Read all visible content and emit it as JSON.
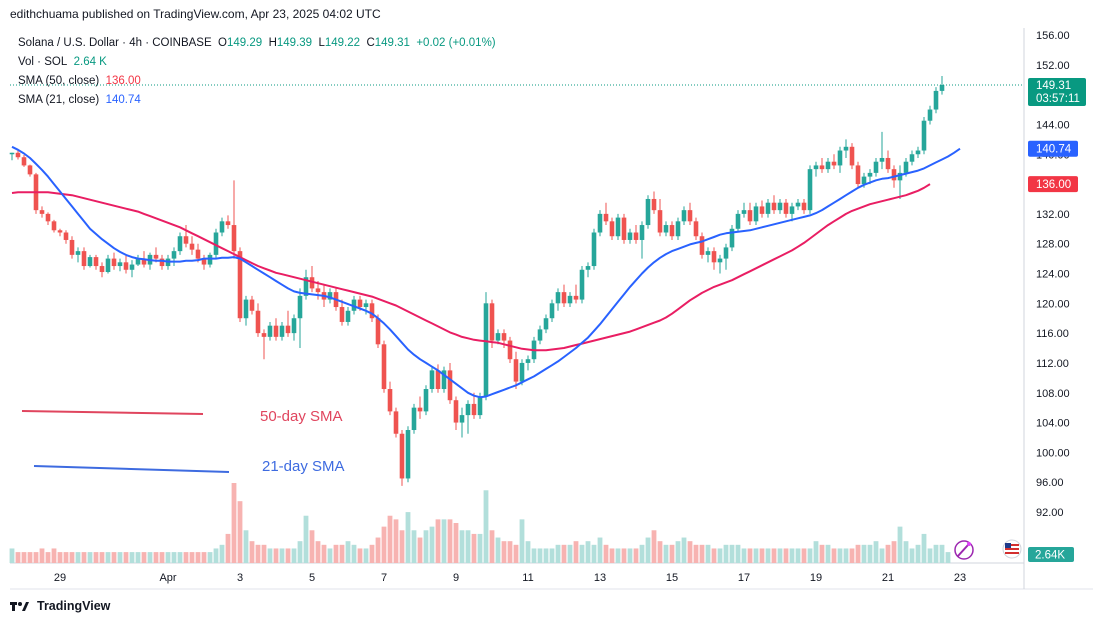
{
  "header": {
    "published": "edithchuama published on TradingView.com, Apr 23, 2025 04:02 UTC"
  },
  "legend": {
    "symbol": "Solana / U.S. Dollar · 4h · COINBASE",
    "o_label": "O",
    "o_value": "149.29",
    "h_label": "H",
    "h_value": "149.39",
    "l_label": "L",
    "l_value": "149.22",
    "c_label": "C",
    "c_value": "149.31",
    "change": "+0.02 (+0.01%)",
    "vol_label": "Vol · SOL",
    "vol_value": "2.64 K",
    "sma50_label": "SMA (50, close)",
    "sma50_value": "136.00",
    "sma21_label": "SMA (21, close)",
    "sma21_value": "140.74"
  },
  "annotations": {
    "sma50": "50-day SMA",
    "sma21": "21-day SMA"
  },
  "price_tags": {
    "last": "149.31",
    "countdown": "03:57:11",
    "sma21": "140.74",
    "sma50": "136.00",
    "volume": "2.64K"
  },
  "footer": {
    "brand": "TradingView"
  },
  "colors": {
    "up": "#26a69a",
    "down": "#ef5350",
    "sma50": "#e91e63",
    "sma21": "#2962ff",
    "vol_up": "#b2dfdb",
    "vol_down": "#f7b3b1"
  },
  "chart_data": {
    "type": "candlestick",
    "y_axis": {
      "ylim": [
        92,
        156
      ],
      "ticks": [
        156,
        152,
        148,
        144,
        140,
        136,
        132,
        128,
        124,
        120,
        116,
        112,
        108,
        104,
        100,
        96,
        92
      ],
      "tick_labels": [
        "156.00",
        "152.00",
        "148.00",
        "144.00",
        "140.00",
        "136.00",
        "132.00",
        "128.00",
        "124.00",
        "120.00",
        "116.00",
        "112.00",
        "108.00",
        "104.00",
        "100.00",
        "96.00",
        "92.00"
      ]
    },
    "x_axis": {
      "tick_labels": [
        "29",
        "Apr",
        "3",
        "5",
        "7",
        "9",
        "11",
        "13",
        "15",
        "17",
        "19",
        "21",
        "23"
      ],
      "tick_index": [
        8,
        26,
        38,
        50,
        62,
        74,
        86,
        98,
        110,
        122,
        134,
        146,
        158
      ]
    },
    "candles": [
      [
        140.0,
        140.2,
        139.2,
        140.2
      ],
      [
        140.2,
        140.5,
        139.3,
        139.6
      ],
      [
        139.6,
        139.9,
        138.3,
        138.5
      ],
      [
        138.5,
        138.6,
        137.0,
        137.3
      ],
      [
        137.3,
        137.5,
        132.0,
        132.5
      ],
      [
        132.5,
        133.0,
        131.5,
        132.0
      ],
      [
        132.0,
        132.2,
        130.5,
        131.0
      ],
      [
        131.0,
        131.2,
        129.5,
        129.8
      ],
      [
        129.8,
        130.0,
        129.0,
        129.5
      ],
      [
        129.5,
        129.8,
        128.0,
        128.5
      ],
      [
        128.5,
        129.0,
        126.0,
        126.5
      ],
      [
        126.5,
        127.5,
        125.5,
        127.0
      ],
      [
        127.0,
        127.5,
        124.5,
        125.0
      ],
      [
        125.0,
        126.5,
        124.8,
        126.2
      ],
      [
        126.2,
        126.5,
        124.5,
        125.0
      ],
      [
        125.0,
        125.5,
        123.5,
        124.2
      ],
      [
        124.2,
        126.5,
        124.0,
        126.0
      ],
      [
        126.0,
        126.8,
        124.5,
        125.0
      ],
      [
        125.0,
        126.0,
        124.3,
        125.5
      ],
      [
        125.5,
        126.5,
        124.0,
        124.5
      ],
      [
        124.5,
        125.8,
        123.5,
        125.2
      ],
      [
        125.2,
        126.5,
        125.0,
        126.0
      ],
      [
        126.0,
        127.0,
        124.8,
        125.2
      ],
      [
        125.2,
        126.8,
        124.5,
        126.5
      ],
      [
        126.5,
        127.5,
        125.5,
        126.0
      ],
      [
        126.0,
        126.5,
        124.5,
        125.0
      ],
      [
        125.0,
        126.5,
        124.5,
        126.0
      ],
      [
        126.0,
        127.5,
        125.0,
        127.0
      ],
      [
        127.0,
        129.5,
        126.5,
        129.0
      ],
      [
        129.0,
        130.5,
        127.5,
        128.0
      ],
      [
        128.0,
        129.0,
        126.5,
        127.2
      ],
      [
        127.2,
        128.0,
        125.5,
        126.0
      ],
      [
        126.0,
        126.5,
        124.5,
        125.2
      ],
      [
        125.2,
        126.8,
        124.8,
        126.5
      ],
      [
        126.5,
        130.0,
        126.0,
        129.5
      ],
      [
        129.5,
        131.5,
        129.0,
        131.0
      ],
      [
        131.0,
        131.8,
        130.0,
        130.5
      ],
      [
        130.5,
        136.5,
        126.0,
        127.0
      ],
      [
        127.0,
        127.5,
        117.5,
        118.0
      ],
      [
        118.0,
        121.0,
        117.0,
        120.5
      ],
      [
        120.5,
        121.0,
        118.5,
        119.0
      ],
      [
        119.0,
        120.0,
        115.5,
        116.0
      ],
      [
        116.0,
        116.5,
        112.5,
        115.5
      ],
      [
        115.5,
        117.5,
        115.0,
        117.0
      ],
      [
        117.0,
        118.0,
        115.0,
        115.5
      ],
      [
        115.5,
        117.5,
        115.0,
        117.0
      ],
      [
        117.0,
        119.0,
        115.5,
        116.0
      ],
      [
        116.0,
        118.5,
        115.0,
        118.0
      ],
      [
        118.0,
        122.0,
        114.0,
        121.0
      ],
      [
        121.0,
        124.5,
        120.5,
        123.5
      ],
      [
        123.5,
        125.0,
        121.5,
        122.0
      ],
      [
        122.0,
        123.0,
        120.5,
        121.5
      ],
      [
        121.5,
        122.5,
        119.5,
        120.5
      ],
      [
        120.5,
        122.0,
        120.0,
        121.5
      ],
      [
        121.5,
        122.0,
        119.0,
        119.5
      ],
      [
        119.5,
        120.5,
        117.0,
        117.5
      ],
      [
        117.5,
        119.5,
        117.0,
        119.0
      ],
      [
        119.0,
        121.0,
        118.5,
        120.5
      ],
      [
        120.5,
        121.0,
        119.0,
        119.5
      ],
      [
        119.5,
        120.5,
        118.5,
        120.0
      ],
      [
        120.0,
        120.5,
        117.5,
        118.0
      ],
      [
        118.0,
        118.5,
        114.0,
        114.5
      ],
      [
        114.5,
        115.0,
        108.0,
        108.5
      ],
      [
        108.5,
        109.5,
        105.0,
        105.5
      ],
      [
        105.5,
        106.0,
        102.0,
        102.5
      ],
      [
        102.5,
        103.0,
        95.5,
        96.5
      ],
      [
        96.5,
        103.5,
        96.0,
        103.0
      ],
      [
        103.0,
        106.5,
        102.5,
        106.0
      ],
      [
        106.0,
        107.5,
        104.5,
        105.5
      ],
      [
        105.5,
        109.0,
        105.0,
        108.5
      ],
      [
        108.5,
        111.5,
        108.0,
        111.0
      ],
      [
        111.0,
        111.8,
        108.0,
        108.5
      ],
      [
        108.5,
        111.5,
        108.0,
        111.0
      ],
      [
        111.0,
        112.0,
        106.5,
        107.0
      ],
      [
        107.0,
        107.5,
        103.0,
        104.0
      ],
      [
        104.0,
        106.0,
        102.0,
        105.0
      ],
      [
        105.0,
        107.0,
        102.5,
        106.5
      ],
      [
        106.5,
        108.0,
        104.5,
        105.0
      ],
      [
        105.0,
        108.0,
        104.5,
        107.5
      ],
      [
        107.5,
        121.5,
        107.0,
        120.0
      ],
      [
        120.0,
        120.5,
        114.0,
        115.0
      ],
      [
        115.0,
        116.5,
        114.5,
        116.0
      ],
      [
        116.0,
        116.5,
        114.0,
        115.0
      ],
      [
        115.0,
        115.5,
        112.0,
        112.5
      ],
      [
        112.5,
        113.5,
        108.5,
        109.5
      ],
      [
        109.5,
        112.5,
        109.0,
        112.0
      ],
      [
        112.0,
        113.0,
        111.0,
        112.5
      ],
      [
        112.5,
        115.5,
        112.0,
        115.0
      ],
      [
        115.0,
        117.0,
        114.5,
        116.5
      ],
      [
        116.5,
        118.5,
        116.0,
        118.0
      ],
      [
        118.0,
        120.5,
        117.5,
        120.0
      ],
      [
        120.0,
        122.0,
        119.0,
        121.5
      ],
      [
        121.5,
        122.5,
        119.5,
        120.0
      ],
      [
        120.0,
        121.5,
        119.5,
        121.0
      ],
      [
        121.0,
        122.5,
        120.0,
        120.5
      ],
      [
        120.5,
        125.0,
        120.0,
        124.5
      ],
      [
        124.5,
        125.5,
        123.5,
        125.0
      ],
      [
        125.0,
        130.0,
        124.5,
        129.5
      ],
      [
        129.5,
        132.5,
        129.0,
        132.0
      ],
      [
        132.0,
        133.5,
        130.5,
        131.0
      ],
      [
        131.0,
        131.5,
        128.5,
        129.0
      ],
      [
        129.0,
        132.0,
        128.5,
        131.5
      ],
      [
        131.5,
        132.0,
        128.0,
        128.5
      ],
      [
        128.5,
        130.0,
        128.0,
        129.5
      ],
      [
        129.5,
        130.5,
        128.0,
        128.5
      ],
      [
        128.5,
        131.0,
        126.0,
        130.5
      ],
      [
        130.5,
        134.5,
        130.0,
        134.0
      ],
      [
        134.0,
        135.0,
        132.0,
        132.5
      ],
      [
        132.5,
        134.0,
        129.0,
        129.5
      ],
      [
        129.5,
        131.0,
        129.0,
        130.5
      ],
      [
        130.5,
        131.0,
        128.5,
        129.0
      ],
      [
        129.0,
        131.5,
        128.5,
        131.0
      ],
      [
        131.0,
        133.0,
        130.5,
        132.5
      ],
      [
        132.5,
        133.5,
        130.5,
        131.0
      ],
      [
        131.0,
        131.5,
        128.5,
        129.0
      ],
      [
        129.0,
        129.5,
        126.0,
        126.5
      ],
      [
        126.5,
        127.5,
        125.5,
        127.0
      ],
      [
        127.0,
        127.5,
        124.5,
        125.5
      ],
      [
        125.5,
        126.5,
        124.0,
        126.0
      ],
      [
        126.0,
        128.0,
        124.5,
        127.5
      ],
      [
        127.5,
        130.5,
        127.0,
        130.0
      ],
      [
        130.0,
        132.5,
        129.5,
        132.0
      ],
      [
        132.0,
        133.5,
        131.5,
        132.5
      ],
      [
        132.5,
        133.5,
        130.5,
        131.0
      ],
      [
        131.0,
        133.5,
        130.5,
        133.0
      ],
      [
        133.0,
        133.8,
        131.5,
        132.0
      ],
      [
        132.0,
        134.0,
        131.5,
        133.5
      ],
      [
        133.5,
        134.5,
        132.0,
        132.5
      ],
      [
        132.5,
        134.0,
        132.0,
        133.5
      ],
      [
        133.5,
        134.0,
        131.5,
        132.0
      ],
      [
        132.0,
        133.5,
        131.0,
        133.0
      ],
      [
        133.0,
        134.0,
        132.5,
        133.5
      ],
      [
        133.5,
        134.0,
        132.0,
        132.5
      ],
      [
        132.5,
        138.5,
        132.0,
        138.0
      ],
      [
        138.0,
        139.0,
        137.0,
        138.5
      ],
      [
        138.5,
        139.5,
        137.5,
        138.0
      ],
      [
        138.0,
        139.5,
        137.5,
        139.0
      ],
      [
        139.0,
        140.0,
        138.0,
        138.5
      ],
      [
        138.5,
        141.0,
        137.5,
        140.5
      ],
      [
        140.5,
        142.0,
        139.5,
        141.0
      ],
      [
        141.0,
        141.5,
        138.0,
        138.5
      ],
      [
        138.5,
        139.0,
        135.5,
        136.0
      ],
      [
        136.0,
        137.5,
        135.5,
        137.0
      ],
      [
        137.0,
        138.0,
        136.0,
        137.5
      ],
      [
        137.5,
        139.5,
        137.0,
        139.0
      ],
      [
        139.0,
        143.0,
        138.0,
        139.5
      ],
      [
        139.5,
        140.5,
        137.5,
        138.0
      ],
      [
        138.0,
        138.5,
        135.5,
        136.5
      ],
      [
        136.5,
        138.5,
        134.0,
        137.5
      ],
      [
        137.5,
        139.5,
        137.0,
        139.0
      ],
      [
        139.0,
        140.5,
        138.5,
        140.0
      ],
      [
        140.0,
        141.0,
        139.5,
        140.5
      ],
      [
        140.5,
        145.0,
        140.0,
        144.5
      ],
      [
        144.5,
        146.5,
        144.0,
        146.0
      ],
      [
        146.0,
        149.0,
        145.5,
        148.5
      ],
      [
        148.5,
        150.5,
        148.0,
        149.29
      ]
    ],
    "sma21": [
      141.0,
      140.6,
      140.1,
      139.5,
      138.7,
      137.9,
      137.0,
      136.0,
      135.0,
      134.0,
      133.0,
      132.0,
      131.0,
      130.0,
      129.3,
      128.6,
      128.0,
      127.4,
      126.9,
      126.5,
      126.2,
      126.0,
      125.9,
      125.8,
      125.7,
      125.7,
      125.6,
      125.6,
      125.6,
      125.7,
      125.7,
      125.8,
      126.0,
      126.0,
      126.0,
      126.1,
      126.1,
      126.2,
      126.0,
      125.5,
      125.0,
      124.5,
      124.0,
      123.5,
      123.0,
      122.5,
      122.0,
      121.6,
      121.4,
      121.3,
      121.2,
      121.1,
      121.0,
      120.8,
      120.5,
      120.2,
      119.9,
      119.6,
      119.3,
      119.0,
      118.6,
      118.0,
      117.3,
      116.5,
      115.6,
      114.7,
      113.8,
      113.1,
      112.5,
      112.0,
      111.5,
      111.0,
      110.4,
      109.8,
      109.2,
      108.6,
      108.0,
      107.6,
      107.4,
      107.5,
      107.8,
      108.1,
      108.4,
      108.7,
      109.0,
      109.4,
      109.8,
      110.2,
      110.7,
      111.2,
      111.7,
      112.2,
      112.8,
      113.4,
      114.0,
      114.7,
      115.4,
      116.3,
      117.2,
      118.2,
      119.2,
      120.2,
      121.2,
      122.2,
      123.1,
      124.0,
      124.8,
      125.5,
      126.1,
      126.6,
      127.0,
      127.3,
      127.6,
      127.9,
      128.1,
      128.3,
      128.6,
      128.9,
      129.2,
      129.4,
      129.5,
      129.6,
      129.7,
      129.8,
      130.0,
      130.2,
      130.4,
      130.6,
      130.8,
      131.0,
      131.2,
      131.4,
      131.6,
      131.8,
      132.1,
      132.5,
      133.0,
      133.5,
      134.0,
      134.5,
      135.0,
      135.5,
      135.9,
      136.2,
      136.5,
      136.7,
      136.8,
      137.0,
      137.2,
      137.4,
      137.6,
      137.8,
      138.1,
      138.5,
      138.9,
      139.3,
      139.7,
      140.2,
      140.74
    ],
    "sma50": [
      134.8,
      134.9,
      134.9,
      134.9,
      134.9,
      134.9,
      134.9,
      134.8,
      134.7,
      134.6,
      134.5,
      134.3,
      134.1,
      133.9,
      133.7,
      133.5,
      133.3,
      133.1,
      132.9,
      132.7,
      132.5,
      132.3,
      132.0,
      131.7,
      131.4,
      131.1,
      130.8,
      130.5,
      130.2,
      129.8,
      129.4,
      129.0,
      128.6,
      128.2,
      127.8,
      127.4,
      127.0,
      126.6,
      126.2,
      125.8,
      125.4,
      125.0,
      124.7,
      124.4,
      124.1,
      123.9,
      123.7,
      123.5,
      123.3,
      123.1,
      122.9,
      122.7,
      122.5,
      122.3,
      122.1,
      121.9,
      121.7,
      121.5,
      121.3,
      121.1,
      120.9,
      120.6,
      120.3,
      120.0,
      119.7,
      119.3,
      118.9,
      118.5,
      118.1,
      117.7,
      117.3,
      116.9,
      116.5,
      116.1,
      115.8,
      115.5,
      115.3,
      115.1,
      115.0,
      114.9,
      114.8,
      114.7,
      114.5,
      114.3,
      114.1,
      113.9,
      113.8,
      113.7,
      113.7,
      113.7,
      113.8,
      113.9,
      114.0,
      114.2,
      114.4,
      114.6,
      114.8,
      115.0,
      115.2,
      115.4,
      115.6,
      115.8,
      116.0,
      116.2,
      116.5,
      116.8,
      117.1,
      117.4,
      117.7,
      118.1,
      118.6,
      119.2,
      119.8,
      120.4,
      120.9,
      121.4,
      121.8,
      122.2,
      122.5,
      122.8,
      123.1,
      123.5,
      123.9,
      124.3,
      124.7,
      125.1,
      125.5,
      125.9,
      126.3,
      126.7,
      127.1,
      127.6,
      128.1,
      128.7,
      129.3,
      129.9,
      130.5,
      131.0,
      131.5,
      132.0,
      132.4,
      132.7,
      133.0,
      133.3,
      133.5,
      133.7,
      133.9,
      134.1,
      134.3,
      134.5,
      134.8,
      135.1,
      135.5,
      136.0
    ],
    "volume": [
      4,
      3,
      3,
      3,
      3,
      4,
      3,
      4,
      3,
      3,
      3,
      3,
      3,
      3,
      3,
      3,
      3,
      3,
      3,
      3,
      3,
      3,
      3,
      3,
      3,
      3,
      3,
      3,
      3,
      3,
      3,
      3,
      3,
      3,
      4,
      5,
      8,
      22,
      17,
      9,
      6,
      5,
      5,
      4,
      4,
      4,
      4,
      4,
      6,
      13,
      9,
      6,
      5,
      4,
      5,
      5,
      6,
      5,
      4,
      4,
      5,
      7,
      10,
      13,
      12,
      9,
      14,
      9,
      7,
      9,
      10,
      12,
      12,
      12,
      11,
      9,
      9,
      8,
      8,
      20,
      9,
      7,
      6,
      6,
      5,
      12,
      6,
      4,
      4,
      4,
      4,
      5,
      5,
      5,
      6,
      5,
      6,
      5,
      7,
      5,
      4,
      4,
      4,
      4,
      4,
      5,
      7,
      9,
      6,
      5,
      5,
      6,
      7,
      6,
      5,
      5,
      5,
      4,
      4,
      5,
      5,
      5,
      4,
      4,
      4,
      4,
      4,
      4,
      4,
      4,
      4,
      4,
      4,
      4,
      6,
      5,
      5,
      4,
      4,
      4,
      4,
      5,
      5,
      5,
      6,
      4,
      5,
      6,
      10,
      6,
      4,
      5,
      8,
      4,
      5,
      5,
      3
    ],
    "sma_annotations": [
      "50-day SMA",
      "21-day SMA"
    ]
  }
}
